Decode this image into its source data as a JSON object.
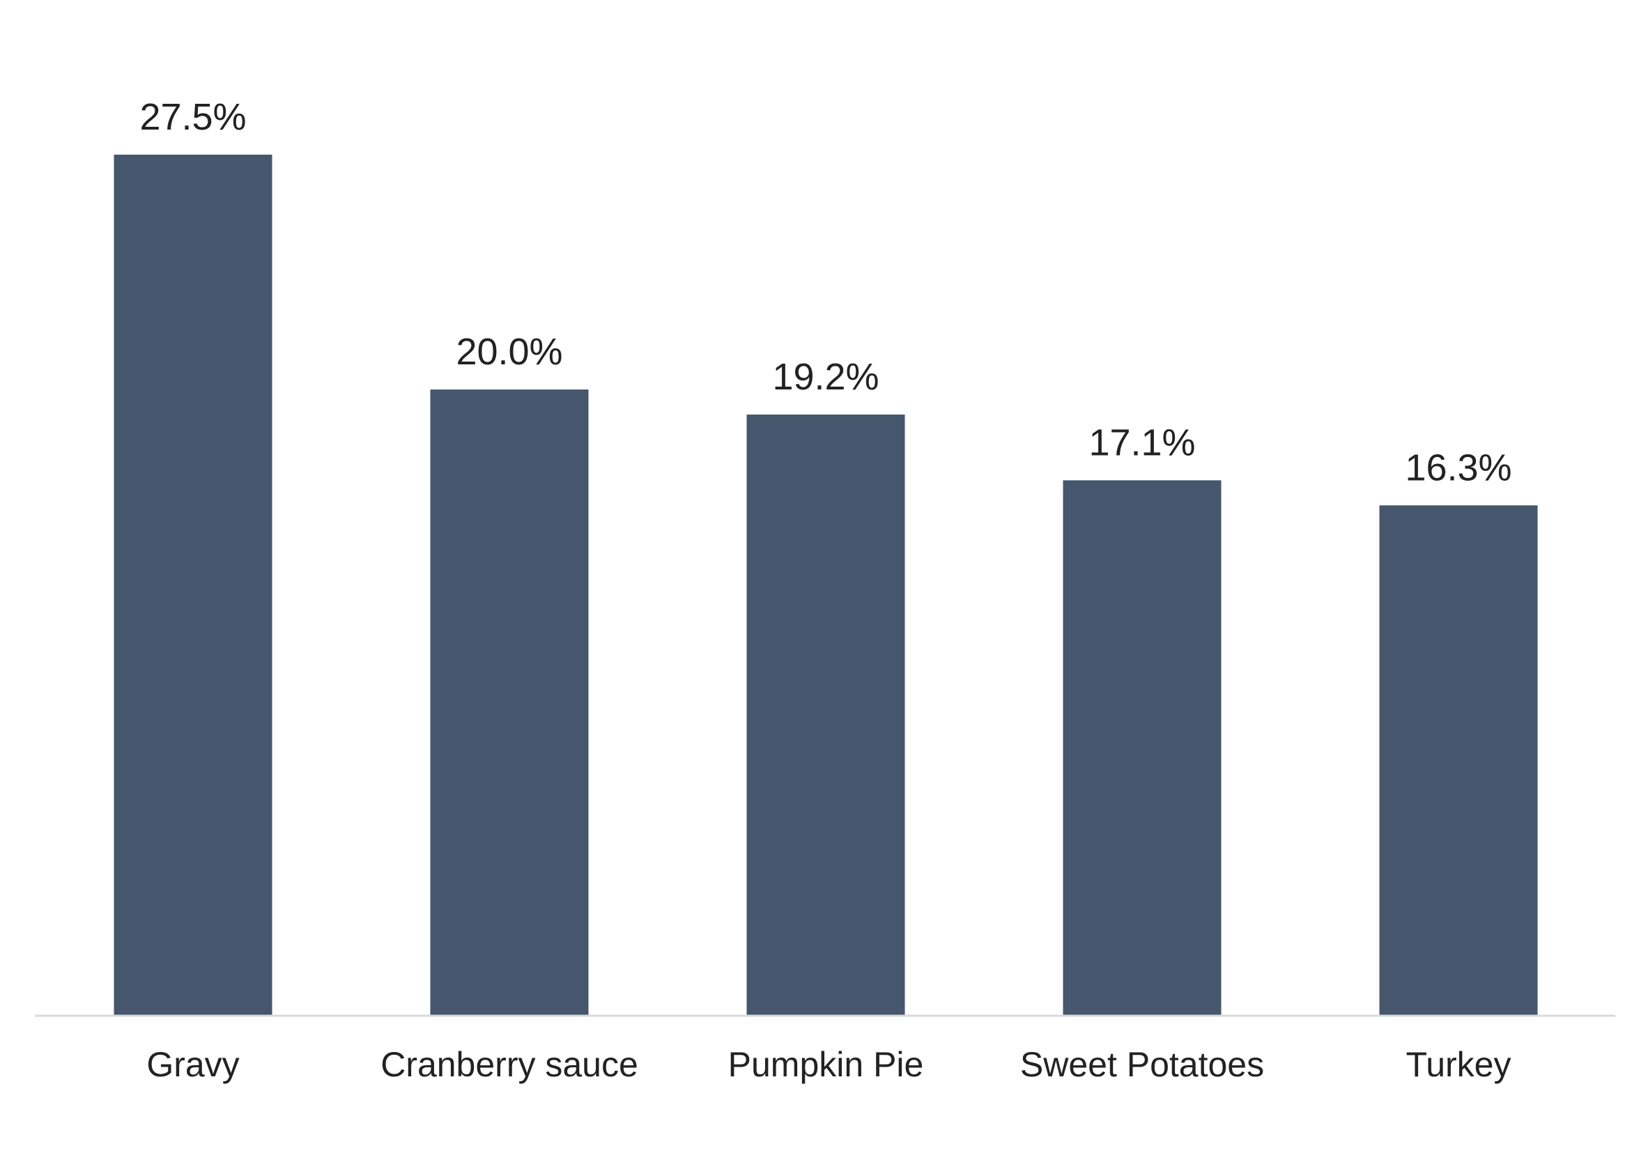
{
  "chart_data": {
    "type": "bar",
    "title": "",
    "xlabel": "",
    "ylabel": "",
    "categories": [
      "Gravy",
      "Cranberry sauce",
      "Pumpkin Pie",
      "Sweet Potatoes",
      "Turkey"
    ],
    "values": [
      27.5,
      20.0,
      19.2,
      17.1,
      16.3
    ],
    "value_labels": [
      "27.5%",
      "20.0%",
      "19.2%",
      "17.1%",
      "16.3%"
    ],
    "ylim": [
      0,
      27.5
    ],
    "grid": false,
    "legend": "none",
    "colors": {
      "bar": "#46566c",
      "axis": "#d9d9d9",
      "text": "#222222"
    }
  }
}
